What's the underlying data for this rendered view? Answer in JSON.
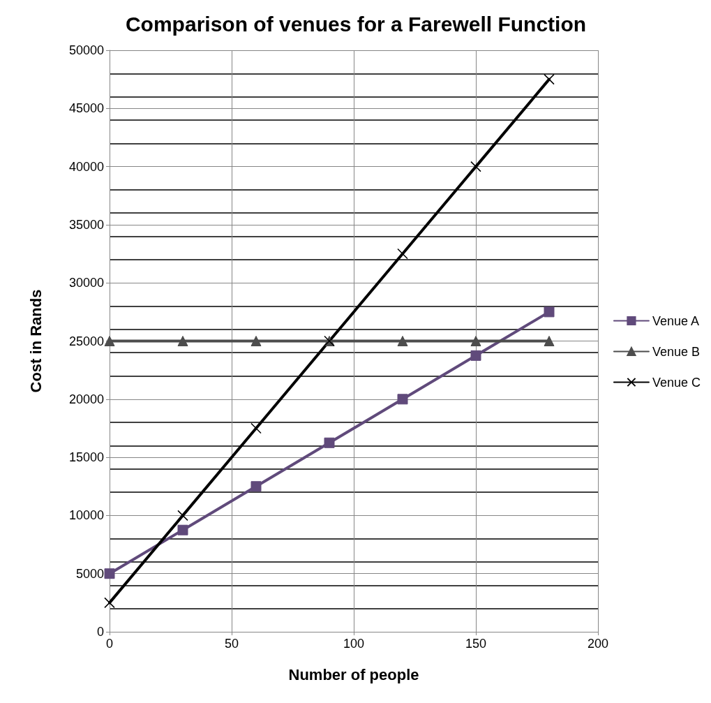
{
  "chart_data": {
    "type": "line",
    "title": "Comparison of venues for a Farewell Function",
    "xlabel": "Number of people",
    "ylabel": "Cost in Rands",
    "x": [
      0,
      30,
      60,
      90,
      120,
      150,
      180
    ],
    "series": [
      {
        "name": "Venue A",
        "color": "#604a7b",
        "marker": "square",
        "values": [
          5000,
          8750,
          12500,
          16250,
          20000,
          23750,
          27500
        ]
      },
      {
        "name": "Venue B",
        "color": "#4d4d4d",
        "marker": "triangle",
        "values": [
          25000,
          25000,
          25000,
          25000,
          25000,
          25000,
          25000
        ]
      },
      {
        "name": "Venue C",
        "color": "#000000",
        "marker": "cross",
        "values": [
          2500,
          10000,
          17500,
          25000,
          32500,
          40000,
          47500
        ]
      }
    ],
    "xlim": [
      0,
      200
    ],
    "xticks": [
      0,
      50,
      100,
      150,
      200
    ],
    "ylim": [
      0,
      50000
    ],
    "yticks": [
      0,
      5000,
      10000,
      15000,
      20000,
      25000,
      30000,
      35000,
      40000,
      45000,
      50000
    ],
    "grid": true,
    "legend": "right",
    "line_style": "solid"
  }
}
